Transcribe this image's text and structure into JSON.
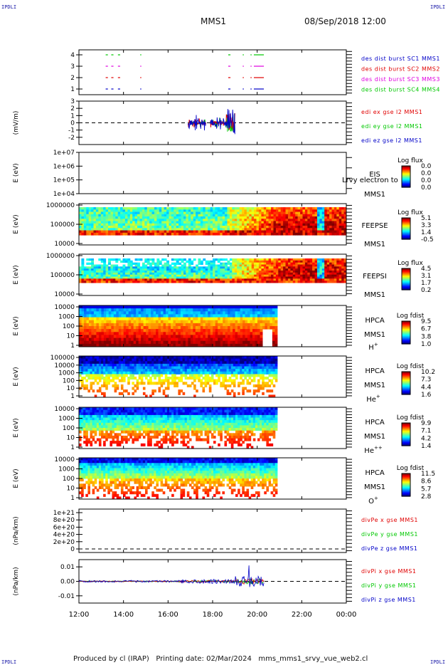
{
  "header": {
    "corner_label": "IPDLI",
    "spacecraft": "MMS1",
    "date": "08/Sep/2018 12:00"
  },
  "footer": {
    "produced_by": "Produced by cl (IRAP)",
    "printing_date": "Printing date: 02/Mar/2024",
    "script_name": "mms_mms1_srvy_vue_web2.cl"
  },
  "colors": {
    "sc1": "#0000c8",
    "sc2": "#e00000",
    "sc3": "#e000e0",
    "sc4": "#00c800",
    "x_component": "#e00000",
    "y_component": "#00c800",
    "z_component": "#0000c8"
  },
  "chart_data": [
    {
      "type": "scatter",
      "id": "burst",
      "x": "time (hours)",
      "xlim": [
        12,
        24
      ],
      "yticks": [
        "1",
        "2",
        "3",
        "4"
      ],
      "series": [
        {
          "name": "des dist burst SC1 MMS1",
          "color": "#0000c8",
          "level": 1,
          "intervals": [
            [
              13.2,
              13.3
            ],
            [
              13.45,
              13.55
            ],
            [
              13.75,
              13.85
            ],
            [
              14.75,
              14.8
            ],
            [
              18.7,
              18.8
            ],
            [
              19.35,
              19.4
            ],
            [
              19.7,
              19.75
            ],
            [
              19.85,
              20.3
            ]
          ]
        },
        {
          "name": "des dist burst SC2 MMS2",
          "color": "#e00000",
          "level": 2,
          "intervals": [
            [
              13.2,
              13.3
            ],
            [
              13.45,
              13.55
            ],
            [
              13.75,
              13.85
            ],
            [
              14.75,
              14.8
            ],
            [
              18.7,
              18.8
            ],
            [
              19.35,
              19.4
            ],
            [
              19.7,
              19.75
            ],
            [
              19.85,
              20.3
            ]
          ]
        },
        {
          "name": "des dist burst SC3 MMS3",
          "color": "#e000e0",
          "level": 3,
          "intervals": [
            [
              13.2,
              13.3
            ],
            [
              13.45,
              13.55
            ],
            [
              13.75,
              13.85
            ],
            [
              14.75,
              14.8
            ],
            [
              18.7,
              18.8
            ],
            [
              19.35,
              19.4
            ],
            [
              19.7,
              19.75
            ],
            [
              19.85,
              20.3
            ]
          ]
        },
        {
          "name": "des dist burst SC4 MMS4",
          "color": "#00c800",
          "level": 4,
          "intervals": [
            [
              13.2,
              13.3
            ],
            [
              13.45,
              13.55
            ],
            [
              13.75,
              13.85
            ],
            [
              14.75,
              14.8
            ],
            [
              18.7,
              18.8
            ],
            [
              19.35,
              19.4
            ],
            [
              19.7,
              19.75
            ],
            [
              19.85,
              20.3
            ]
          ]
        }
      ]
    },
    {
      "type": "line",
      "id": "edi",
      "ylabel": "(mV/m)",
      "ylim": [
        -3,
        3
      ],
      "yticks": [
        "3",
        "2",
        "1",
        "0",
        "-1",
        "-2"
      ],
      "series": [
        {
          "name": "edi ex gse l2 MMS1",
          "color": "#e00000"
        },
        {
          "name": "edi ey gse l2 MMS1",
          "color": "#00c800"
        },
        {
          "name": "edi ez gse l2 MMS1",
          "color": "#0000c8"
        }
      ],
      "active_intervals": [
        [
          16.9,
          17.7
        ],
        [
          17.9,
          19.0
        ]
      ]
    },
    {
      "type": "heatmap",
      "id": "eis",
      "ylabel": "E (eV)",
      "yticks": [
        "1e+07",
        "1e+06",
        "1e+05",
        "1e+04"
      ],
      "label_lines": [
        "EIS",
        "MMS1"
      ],
      "overlay_text": "Lrvy electron to",
      "colorbar": {
        "title": "Log flux",
        "ticks": [
          "0.0",
          "0.0",
          "0.0",
          "0.0"
        ]
      }
    },
    {
      "type": "heatmap",
      "id": "feepse",
      "ylabel": "E (eV)",
      "yticks": [
        "1000000",
        "100000",
        "10000"
      ],
      "label_lines": [
        "FEEPSE",
        "MMS1"
      ],
      "colorbar": {
        "title": "Log flux",
        "ticks": [
          "5.1",
          "3.3",
          "1.4",
          "-0.5"
        ]
      }
    },
    {
      "type": "heatmap",
      "id": "feepsi",
      "ylabel": "E (eV)",
      "yticks": [
        "1000000",
        "100000",
        "10000"
      ],
      "label_lines": [
        "FEEPSI",
        "MMS1"
      ],
      "colorbar": {
        "title": "Log flux",
        "ticks": [
          "4.5",
          "3.1",
          "1.7",
          "0.2"
        ]
      }
    },
    {
      "type": "heatmap",
      "id": "hpca_h",
      "ylabel": "E (eV)",
      "yticks": [
        "10000",
        "1000",
        "100",
        "10",
        "1"
      ],
      "label_lines": [
        "HPCA",
        "MMS1"
      ],
      "species": "H",
      "species_charge": "+",
      "data_end_hour": 20.9,
      "colorbar": {
        "title": "Log fdist",
        "ticks": [
          "9.5",
          "6.7",
          "3.8",
          "1.0"
        ]
      }
    },
    {
      "type": "heatmap",
      "id": "hpca_he",
      "ylabel": "E (eV)",
      "yticks": [
        "100000",
        "10000",
        "1000",
        "100",
        "10",
        "1"
      ],
      "label_lines": [
        "HPCA",
        "MMS1"
      ],
      "species": "He",
      "species_charge": "+",
      "data_end_hour": 20.9,
      "colorbar": {
        "title": "Log fdist",
        "ticks": [
          "10.2",
          "7.3",
          "4.4",
          "1.6"
        ]
      }
    },
    {
      "type": "heatmap",
      "id": "hpca_hepp",
      "ylabel": "E (eV)",
      "yticks": [
        "10000",
        "1000",
        "100",
        "10",
        "1"
      ],
      "label_lines": [
        "HPCA",
        "MMS1"
      ],
      "species": "He",
      "species_charge": "++",
      "data_end_hour": 20.9,
      "colorbar": {
        "title": "Log fdist",
        "ticks": [
          "9.9",
          "7.1",
          "4.2",
          "1.4"
        ]
      }
    },
    {
      "type": "heatmap",
      "id": "hpca_o",
      "ylabel": "E (eV)",
      "yticks": [
        "10000",
        "1000",
        "100",
        "10",
        "1"
      ],
      "label_lines": [
        "HPCA",
        "MMS1"
      ],
      "species": "O",
      "species_charge": "+",
      "data_end_hour": 20.9,
      "colorbar": {
        "title": "Log fdist",
        "ticks": [
          "11.5",
          "8.6",
          "5.7",
          "2.8"
        ]
      }
    },
    {
      "type": "line",
      "id": "divpe",
      "ylabel": "(nPa/km)",
      "yticks": [
        "1e+21",
        "8e+20",
        "6e+20",
        "4e+20",
        "2e+20",
        "0"
      ],
      "series": [
        {
          "name": "divPe x gse MMS1",
          "color": "#e00000"
        },
        {
          "name": "divPe y gse MMS1",
          "color": "#00c800"
        },
        {
          "name": "divPe z gse MMS1",
          "color": "#0000c8"
        }
      ]
    },
    {
      "type": "line",
      "id": "divpi",
      "ylabel": "(nPa/km)",
      "ylim": [
        -0.015,
        0.015
      ],
      "yticks": [
        "0.01",
        "0.00",
        "-0.01"
      ],
      "series": [
        {
          "name": "divPi x gse MMS1",
          "color": "#e00000"
        },
        {
          "name": "divPi y gse MMS1",
          "color": "#00c800"
        },
        {
          "name": "divPi z gse MMS1",
          "color": "#0000c8"
        }
      ],
      "data_end_hour": 20.3
    },
    {
      "type": "axis",
      "id": "time_axis",
      "xlim": [
        12,
        24
      ],
      "xticks": [
        "12:00",
        "14:00",
        "16:00",
        "18:00",
        "20:00",
        "22:00",
        "00:00"
      ]
    }
  ]
}
